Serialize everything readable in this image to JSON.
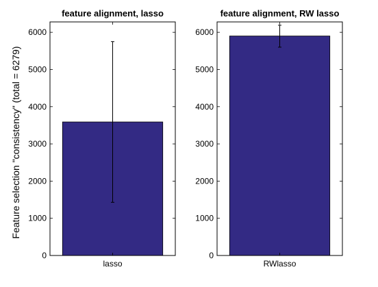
{
  "figure": {
    "ylabel": "Feature selection \"consistency\" (total = 6279)"
  },
  "chart_data": [
    {
      "type": "bar",
      "title": "feature alignment, lasso",
      "categories": [
        "lasso"
      ],
      "values": [
        3590
      ],
      "error_low": [
        1430
      ],
      "error_high": [
        5750
      ],
      "ylim": [
        0,
        6279
      ],
      "yticks": [
        0,
        1000,
        2000,
        3000,
        4000,
        5000,
        6000
      ],
      "bar_color": "#332a84",
      "grid": false
    },
    {
      "type": "bar",
      "title": "feature alignment, RW lasso",
      "categories": [
        "RWlasso"
      ],
      "values": [
        5900
      ],
      "error_low": [
        5600
      ],
      "error_high": [
        6190
      ],
      "ylim": [
        0,
        6279
      ],
      "yticks": [
        0,
        1000,
        2000,
        3000,
        4000,
        5000,
        6000
      ],
      "bar_color": "#332a84",
      "grid": false
    }
  ]
}
